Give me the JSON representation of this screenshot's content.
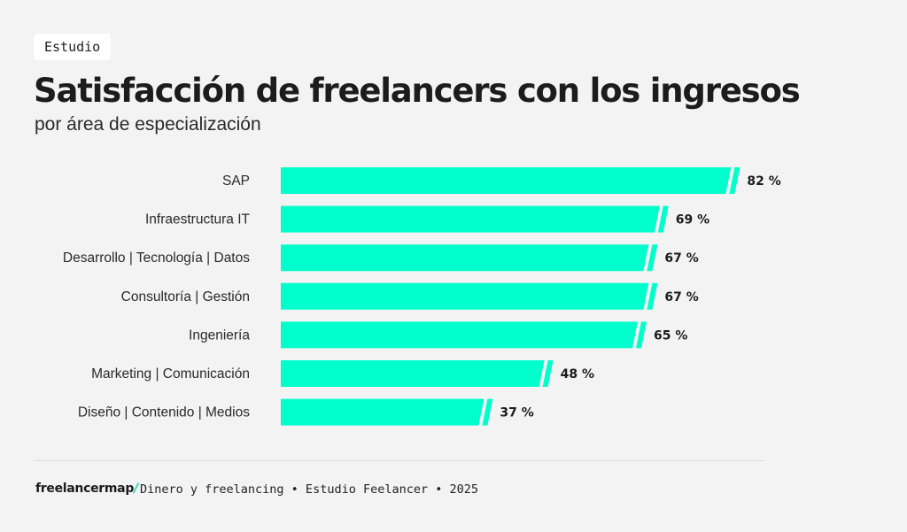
{
  "header": {
    "tag": "Estudio",
    "title": "Satisfacción de freelancers con los ingresos",
    "subtitle": "por área de especialización"
  },
  "chart_data": {
    "type": "bar",
    "orientation": "horizontal",
    "categories": [
      "SAP",
      "Infraestructura IT",
      "Desarrollo | Tecnología | Datos",
      "Consultoría | Gestión",
      "Ingeniería",
      "Marketing | Comunicación",
      "Diseño | Contenido | Medios"
    ],
    "values": [
      82,
      69,
      67,
      67,
      65,
      48,
      37
    ],
    "value_labels": [
      "82 %",
      "69 %",
      "67 %",
      "67 %",
      "65 %",
      "48 %",
      "37 %"
    ],
    "unit": "%",
    "xlim": [
      0,
      100
    ],
    "grid": false,
    "bar_color": "#00ffcc"
  },
  "footer": {
    "brand_text": "freelancermap",
    "brand_mark": "/",
    "brand_accent_color": "#00d9b2",
    "caption": "Dinero y freelancing • Estudio Feelancer • 2025"
  }
}
